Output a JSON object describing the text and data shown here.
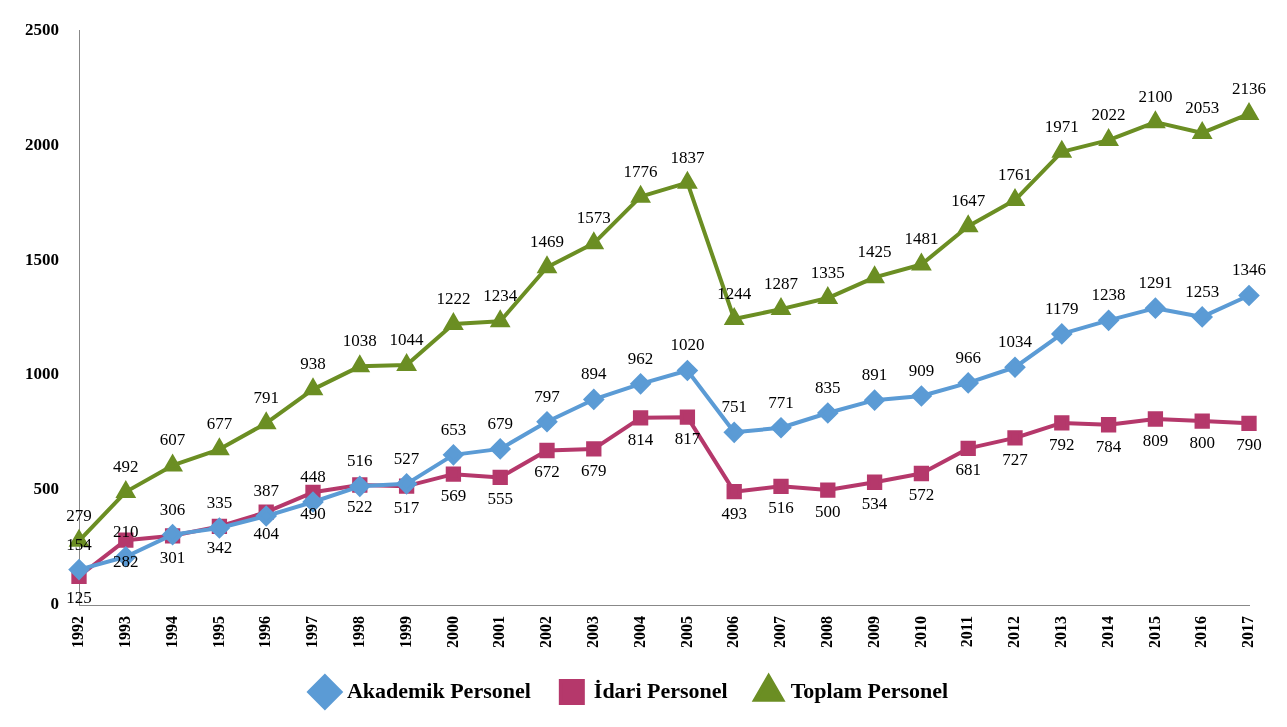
{
  "chart_data": {
    "type": "line",
    "categories": [
      "1992",
      "1993",
      "1994",
      "1995",
      "1996",
      "1997",
      "1998",
      "1999",
      "2000",
      "2001",
      "2002",
      "2003",
      "2004",
      "2005",
      "2006",
      "2007",
      "2008",
      "2009",
      "2010",
      "2011",
      "2012",
      "2013",
      "2014",
      "2015",
      "2016",
      "2017"
    ],
    "series": [
      {
        "name": "Akademik Personel",
        "color": "#5b9bd5",
        "marker": "diamond",
        "values": [
          154,
          210,
          306,
          335,
          387,
          448,
          516,
          527,
          653,
          679,
          797,
          894,
          962,
          1020,
          751,
          771,
          835,
          891,
          909,
          966,
          1034,
          1179,
          1238,
          1291,
          1253,
          1346
        ]
      },
      {
        "name": "İdari Personel",
        "color": "#b5386b",
        "marker": "square",
        "values": [
          125,
          282,
          301,
          342,
          404,
          490,
          522,
          517,
          569,
          555,
          672,
          679,
          814,
          817,
          493,
          516,
          500,
          534,
          572,
          681,
          727,
          792,
          784,
          809,
          800,
          790
        ]
      },
      {
        "name": "Toplam Personel",
        "color": "#6b8e23",
        "marker": "triangle",
        "values": [
          279,
          492,
          607,
          677,
          791,
          938,
          1038,
          1044,
          1222,
          1234,
          1469,
          1573,
          1776,
          1837,
          1244,
          1287,
          1335,
          1425,
          1481,
          1647,
          1761,
          1971,
          2022,
          2100,
          2053,
          2136
        ]
      }
    ],
    "ylim": [
      0,
      2500
    ],
    "yticks": [
      0,
      500,
      1000,
      1500,
      2000,
      2500
    ],
    "grid": false,
    "legend": "bottom",
    "data_labels": true,
    "line_style": "solid"
  }
}
